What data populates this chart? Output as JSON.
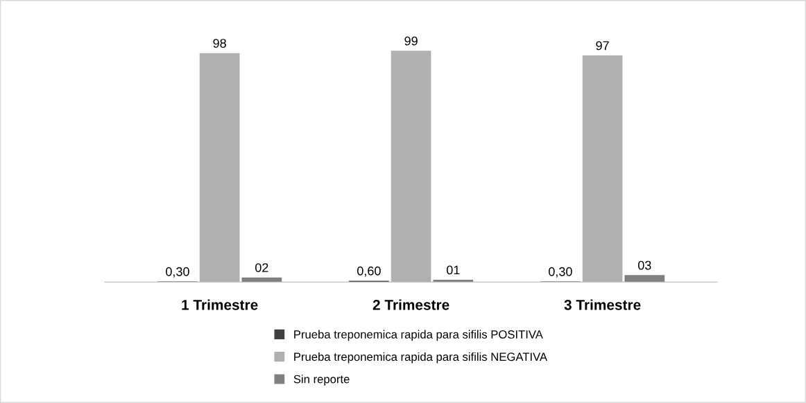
{
  "chart_data": {
    "type": "bar",
    "categories": [
      "1 Trimestre",
      "2 Trimestre",
      "3 Trimestre"
    ],
    "series": [
      {
        "name": "Prueba treponemica rapida para sifilis POSITIVA",
        "color": "#404040",
        "values": [
          0.3,
          0.6,
          0.3
        ],
        "value_labels": [
          "0,30",
          "0,60",
          "0,30"
        ]
      },
      {
        "name": "Prueba treponemica rapida para sifilis NEGATIVA",
        "color": "#b0b0b0",
        "values": [
          98,
          99,
          97
        ],
        "value_labels": [
          "98",
          "99",
          "97"
        ]
      },
      {
        "name": "Sin reporte",
        "color": "#808080",
        "values": [
          2,
          1,
          3
        ],
        "value_labels": [
          "02",
          "01",
          "03"
        ]
      }
    ],
    "legend": "bottom",
    "grid": false
  }
}
